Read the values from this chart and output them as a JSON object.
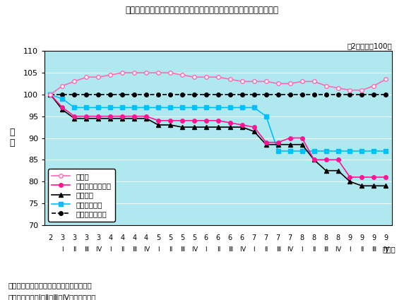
{
  "title": "第２－４－６図　企業向けサービス価格指数の推移（国際電気通信）",
  "subtitle": "（2年平均＝100）",
  "ylabel_line1": "指",
  "ylabel_line2": "数",
  "xlabel_note1": "「物価指数月報」（日本銀行）により作成",
  "xlabel_note2": "（注）　図中、Ⅰ、Ⅱ、Ⅲ、Ⅳは暦年四半期",
  "xlabel_year_note": "（年）",
  "ylim": [
    70,
    110
  ],
  "yticks": [
    70,
    75,
    80,
    85,
    90,
    95,
    100,
    105,
    110
  ],
  "x_labels_top": [
    "2",
    "3",
    "3",
    "3",
    "3",
    "4",
    "4",
    "4",
    "4",
    "5",
    "5",
    "5",
    "5",
    "6",
    "6",
    "6",
    "6",
    "7",
    "7",
    "7",
    "7",
    "8",
    "8",
    "8",
    "8",
    "9",
    "9",
    "9",
    "9"
  ],
  "x_labels_bot": [
    "",
    "Ⅰ",
    "Ⅱ",
    "Ⅲ",
    "Ⅳ",
    "Ⅰ",
    "Ⅱ",
    "Ⅲ",
    "Ⅳ",
    "Ⅰ",
    "Ⅱ",
    "Ⅲ",
    "Ⅳ",
    "Ⅰ",
    "Ⅱ",
    "Ⅲ",
    "Ⅳ",
    "Ⅰ",
    "Ⅱ",
    "Ⅲ",
    "Ⅳ",
    "Ⅰ",
    "Ⅱ",
    "Ⅲ",
    "Ⅳ",
    "Ⅰ",
    "Ⅱ",
    "Ⅲ",
    "Ⅳ"
  ],
  "series": {
    "sogo": {
      "label": "総平均",
      "color": "#FF69B4",
      "marker": "o",
      "markersize": 4,
      "markerfacecolor": "white",
      "markeredgecolor": "#FF69B4",
      "linestyle": "-",
      "linewidth": 1.2,
      "values": [
        100,
        102,
        103,
        104,
        104,
        104.5,
        105,
        105,
        105,
        105,
        105,
        104.5,
        104,
        104,
        104,
        103.5,
        103,
        103,
        103,
        102.5,
        102.5,
        103,
        103,
        102,
        101.5,
        101,
        101,
        102,
        103.5
      ]
    },
    "kokusai_zentai": {
      "label": "国際電気通信全体",
      "color": "#FF1493",
      "marker": "o",
      "markersize": 4,
      "markerfacecolor": "#FF1493",
      "markeredgecolor": "#FF1493",
      "linestyle": "-",
      "linewidth": 1.2,
      "values": [
        100,
        97,
        95,
        95,
        95,
        95,
        95,
        95,
        95,
        94,
        94,
        94,
        94,
        94,
        94,
        93.5,
        93,
        92.5,
        89,
        89,
        90,
        90,
        85,
        85,
        85,
        81,
        81,
        81,
        81
      ]
    },
    "kokusai_denwa": {
      "label": "国際電話",
      "color": "#000000",
      "marker": "^",
      "markersize": 4,
      "markerfacecolor": "#000000",
      "markeredgecolor": "#000000",
      "linestyle": "-",
      "linewidth": 1.2,
      "values": [
        100,
        96.5,
        94.5,
        94.5,
        94.5,
        94.5,
        94.5,
        94.5,
        94.5,
        93,
        93,
        92.5,
        92.5,
        92.5,
        92.5,
        92.5,
        92.5,
        91.5,
        88.5,
        88.5,
        88.5,
        88.5,
        85,
        82.5,
        82.5,
        80,
        79,
        79,
        79
      ]
    },
    "kokusai_senyo": {
      "label": "国際専用回線",
      "color": "#00BFFF",
      "marker": "s",
      "markersize": 4,
      "markerfacecolor": "#00BFFF",
      "markeredgecolor": "#00BFFF",
      "linestyle": "-",
      "linewidth": 1.2,
      "values": [
        100,
        99,
        97,
        97,
        97,
        97,
        97,
        97,
        97,
        97,
        97,
        97,
        97,
        97,
        97,
        97,
        97,
        97,
        95,
        87,
        87,
        87,
        87,
        87,
        87,
        87,
        87,
        87,
        87
      ]
    },
    "telex": {
      "label": "国際テレックス",
      "color": "#000000",
      "marker": "o",
      "markersize": 4,
      "markerfacecolor": "#000000",
      "markeredgecolor": "#000000",
      "linestyle": "--",
      "linewidth": 1.2,
      "values": [
        100,
        100,
        100,
        100,
        100,
        100,
        100,
        100,
        100,
        100,
        100,
        100,
        100,
        100,
        100,
        100,
        100,
        100,
        100,
        100,
        100,
        100,
        100,
        100,
        100,
        100,
        100,
        100,
        100
      ]
    }
  },
  "background_color": "#ADD8E6",
  "plot_bgcolor": "#B0E8F0"
}
